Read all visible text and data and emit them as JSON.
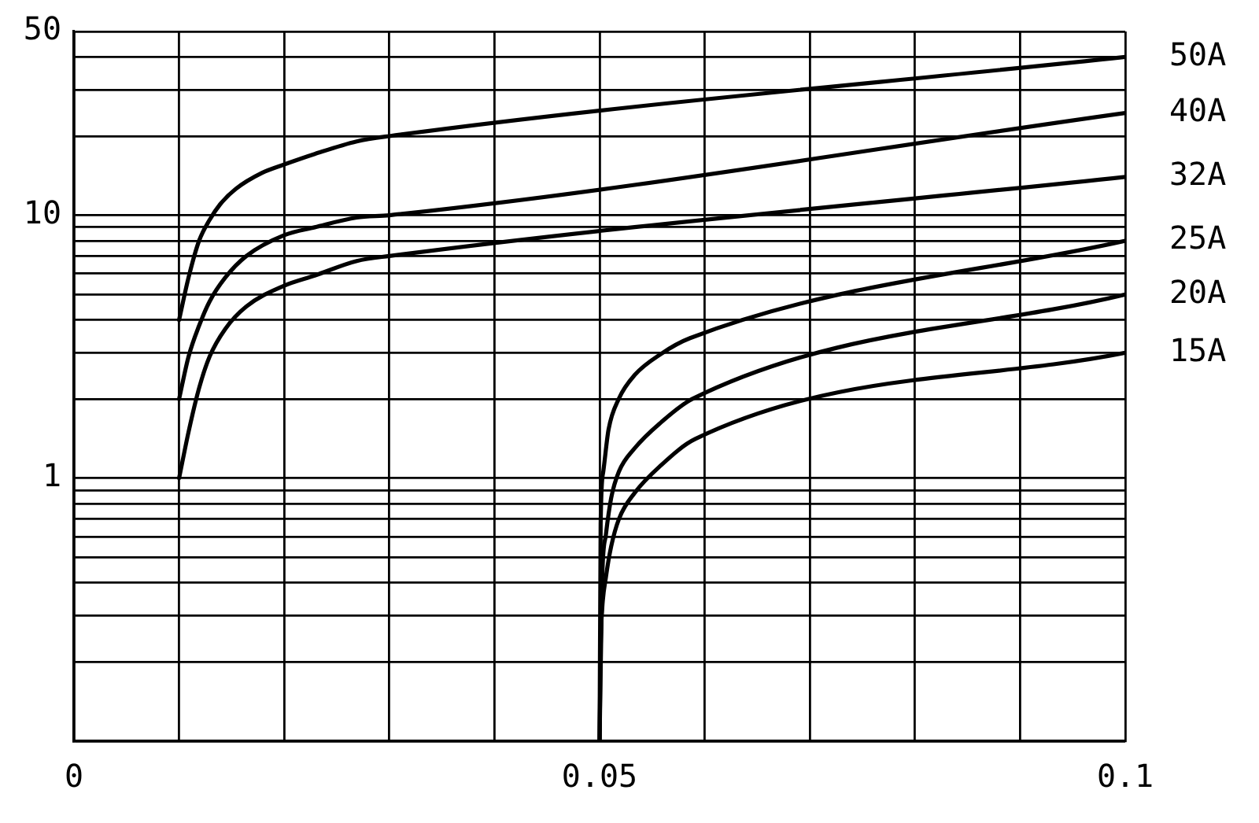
{
  "chart_data": {
    "type": "line",
    "log": "y",
    "grid": true,
    "legend": false,
    "marker": "none",
    "line_style": "solid",
    "xlim": [
      0,
      0.1
    ],
    "ylim": [
      0.1,
      50
    ],
    "xticks": [
      0,
      {
        "value": 0.01,
        "label": null
      },
      {
        "value": 0.02,
        "label": null
      },
      {
        "value": 0.03,
        "label": null
      },
      {
        "value": 0.04,
        "label": null
      },
      0.05,
      {
        "value": 0.06,
        "label": null
      },
      {
        "value": 0.07,
        "label": null
      },
      {
        "value": 0.08,
        "label": null
      },
      {
        "value": 0.09,
        "label": null
      },
      0.1
    ],
    "yticks": [
      {
        "value": 0.1,
        "label": null
      },
      {
        "value": 0.2,
        "label": null
      },
      {
        "value": 0.3,
        "label": null
      },
      {
        "value": 0.4,
        "label": null
      },
      {
        "value": 0.5,
        "label": null
      },
      {
        "value": 0.6,
        "label": null
      },
      {
        "value": 0.7,
        "label": null
      },
      {
        "value": 0.8,
        "label": null
      },
      {
        "value": 0.9,
        "label": null
      },
      1,
      {
        "value": 2,
        "label": null
      },
      {
        "value": 3,
        "label": null
      },
      {
        "value": 4,
        "label": null
      },
      {
        "value": 5,
        "label": null
      },
      {
        "value": 6,
        "label": null
      },
      {
        "value": 7,
        "label": null
      },
      {
        "value": 8,
        "label": null
      },
      {
        "value": 9,
        "label": null
      },
      10,
      {
        "value": 20,
        "label": null
      },
      {
        "value": 30,
        "label": null
      },
      {
        "value": 40,
        "label": null
      },
      50
    ],
    "series": [
      {
        "name": "50A",
        "color": "#000000",
        "x": [
          0.01,
          0.0109,
          0.0119,
          0.0129,
          0.0139,
          0.0154,
          0.0179,
          0.02,
          0.0229,
          0.0269,
          0.03,
          0.1
        ],
        "values": [
          4,
          5.8,
          8,
          9.6,
          11,
          12.6,
          14.5,
          15.6,
          17.1,
          19.1,
          20,
          40
        ]
      },
      {
        "name": "40A",
        "color": "#000000",
        "x": [
          0.01,
          0.0109,
          0.0119,
          0.0129,
          0.0144,
          0.0164,
          0.02,
          0.0229,
          0.0269,
          0.03,
          0.1
        ],
        "values": [
          2,
          2.9,
          3.8,
          4.7,
          5.8,
          7,
          8.4,
          9,
          9.8,
          10,
          24.5
        ]
      },
      {
        "name": "32A",
        "color": "#000000",
        "x": [
          0.01,
          0.0109,
          0.0119,
          0.0129,
          0.0144,
          0.0164,
          0.02,
          0.0229,
          0.0269,
          0.03,
          0.1
        ],
        "values": [
          1,
          1.5,
          2.2,
          2.9,
          3.7,
          4.5,
          5.4,
          5.9,
          6.7,
          7,
          14
        ]
      },
      {
        "name": "25A",
        "color": "#000000",
        "x": [
          0.05,
          0.0501,
          0.05035,
          0.05085,
          0.05184,
          0.05334,
          0.05584,
          0.0586,
          0.1
        ],
        "values": [
          0.1,
          0.67,
          1.06,
          1.53,
          2.01,
          2.47,
          2.97,
          3.41,
          8
        ]
      },
      {
        "name": "20A",
        "color": "#000000",
        "x": [
          0.05,
          0.05025,
          0.0506,
          0.0511,
          0.05184,
          0.05334,
          0.05584,
          0.0588,
          0.1
        ],
        "values": [
          0.1,
          0.42,
          0.61,
          0.84,
          1.06,
          1.3,
          1.63,
          2,
          5
        ]
      },
      {
        "name": "15A",
        "color": "#000000",
        "x": [
          0.05,
          0.0501,
          0.05025,
          0.0506,
          0.0511,
          0.05184,
          0.05334,
          0.05584,
          0.0591,
          0.1
        ],
        "values": [
          0.1,
          0.23,
          0.32,
          0.42,
          0.55,
          0.7,
          0.88,
          1.12,
          1.41,
          3
        ]
      }
    ]
  }
}
